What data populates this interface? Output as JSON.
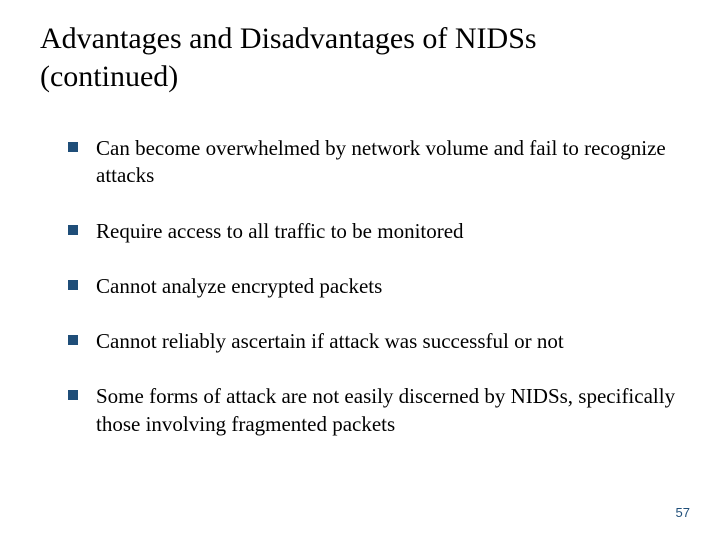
{
  "slide": {
    "title": "Advantages and Disadvantages of NIDSs (continued)",
    "bullets": [
      "Can become overwhelmed by network volume and fail to recognize attacks",
      "Require access to all traffic to be monitored",
      "Cannot analyze encrypted packets",
      "Cannot reliably ascertain if attack was successful or not",
      "Some forms of attack are not easily discerned by NIDSs, specifically those involving fragmented packets"
    ],
    "page_number": "57",
    "colors": {
      "background": "#ffffff",
      "title_text": "#000000",
      "body_text": "#000000",
      "bullet_marker": "#1f4e79",
      "page_number": "#1f4e79"
    },
    "fonts": {
      "title_size": 30,
      "body_size": 21,
      "page_number_size": 13
    }
  }
}
